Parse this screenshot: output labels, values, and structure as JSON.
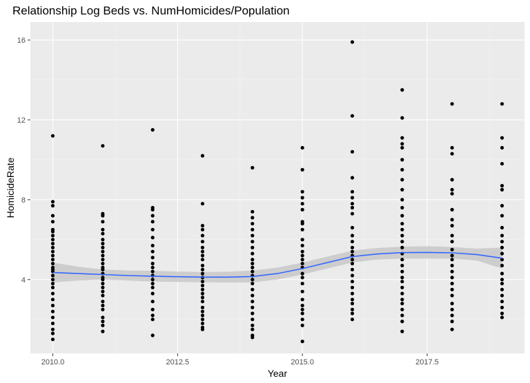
{
  "chart_data": {
    "type": "scatter",
    "title": "Relationship Log Beds vs. NumHomicides/Population",
    "xlabel": "Year",
    "ylabel": "HomicideRate",
    "xlim": [
      2009.55,
      2019.45
    ],
    "ylim": [
      0.3,
      16.9
    ],
    "x_ticks": [
      2010.0,
      2012.5,
      2015.0,
      2017.5
    ],
    "x_tick_labels": [
      "2010.0",
      "2012.5",
      "2015.0",
      "2017.5"
    ],
    "y_ticks": [
      4,
      8,
      12,
      16
    ],
    "y_tick_labels": [
      "4",
      "8",
      "12",
      "16"
    ],
    "grid": true,
    "panel_background": "#ebebeb",
    "point_color": "#000000",
    "smooth_color": "#3366ff",
    "ribbon_color": "#c8c8c8",
    "points": [
      {
        "x": 2010,
        "y": [
          11.2,
          7.9,
          7.7,
          7.2,
          6.9,
          6.5,
          6.4,
          6.2,
          6.0,
          5.8,
          5.6,
          5.4,
          5.2,
          5.0,
          4.8,
          4.6,
          4.5,
          4.4,
          4.2,
          4.0,
          3.8,
          3.6,
          3.3,
          3.0,
          2.7,
          2.4,
          2.1,
          1.8,
          1.5,
          1.3,
          1.0
        ]
      },
      {
        "x": 2011,
        "y": [
          10.7,
          7.3,
          7.2,
          6.9,
          6.5,
          6.3,
          6.0,
          5.8,
          5.6,
          5.4,
          5.2,
          5.0,
          4.8,
          4.6,
          4.5,
          4.3,
          4.1,
          4.0,
          3.8,
          3.6,
          3.4,
          3.2,
          2.9,
          2.7,
          2.5,
          2.1,
          1.9,
          1.7,
          1.4
        ]
      },
      {
        "x": 2012,
        "y": [
          11.5,
          7.6,
          7.5,
          7.2,
          6.9,
          6.5,
          6.1,
          5.7,
          5.4,
          5.1,
          4.8,
          4.6,
          4.4,
          4.2,
          4.0,
          3.8,
          3.6,
          3.3,
          2.9,
          2.5,
          2.2,
          2.0,
          1.2
        ]
      },
      {
        "x": 2013,
        "y": [
          10.2,
          7.8,
          6.7,
          6.5,
          6.2,
          5.9,
          5.6,
          5.4,
          5.2,
          5.0,
          4.7,
          4.5,
          4.3,
          4.1,
          3.9,
          3.7,
          3.5,
          3.3,
          3.1,
          2.9,
          2.6,
          2.4,
          2.2,
          2.0,
          1.8,
          1.6,
          1.5
        ]
      },
      {
        "x": 2014,
        "y": [
          9.6,
          7.4,
          7.1,
          6.8,
          6.5,
          6.2,
          5.9,
          5.6,
          5.3,
          5.0,
          4.8,
          4.6,
          4.4,
          4.2,
          4.0,
          3.8,
          3.5,
          3.2,
          2.9,
          2.6,
          2.3,
          2.0,
          1.7,
          1.5,
          1.2,
          1.1
        ]
      },
      {
        "x": 2015,
        "y": [
          10.6,
          9.5,
          8.4,
          8.1,
          7.8,
          7.5,
          6.9,
          6.8,
          6.5,
          6.0,
          5.7,
          5.4,
          5.2,
          5.0,
          4.8,
          4.6,
          4.3,
          4.1,
          3.8,
          3.4,
          3.0,
          2.7,
          2.5,
          2.3,
          2.0,
          1.7,
          0.9
        ]
      },
      {
        "x": 2016,
        "y": [
          15.9,
          12.2,
          10.4,
          9.1,
          8.4,
          8.1,
          7.8,
          7.6,
          7.3,
          6.6,
          6.2,
          5.9,
          5.6,
          5.4,
          5.2,
          5.0,
          4.8,
          4.5,
          4.2,
          3.9,
          3.6,
          3.3,
          3.0,
          2.8,
          2.5,
          2.3,
          2.0
        ]
      },
      {
        "x": 2017,
        "y": [
          13.5,
          12.1,
          11.1,
          10.8,
          10.6,
          10.0,
          9.5,
          9.0,
          8.5,
          8.0,
          7.6,
          7.2,
          6.8,
          6.5,
          6.2,
          5.9,
          5.6,
          5.3,
          5.0,
          4.7,
          4.4,
          4.1,
          3.9,
          3.6,
          3.3,
          3.0,
          2.8,
          2.5,
          2.2,
          1.9,
          1.4
        ]
      },
      {
        "x": 2018,
        "y": [
          12.8,
          10.6,
          10.3,
          9.0,
          8.5,
          8.3,
          7.5,
          7.0,
          6.7,
          6.2,
          5.9,
          5.5,
          5.2,
          5.0,
          4.7,
          4.4,
          4.1,
          3.8,
          3.5,
          3.2,
          2.8,
          2.5,
          2.2,
          1.9,
          1.5
        ]
      },
      {
        "x": 2019,
        "y": [
          12.8,
          11.1,
          10.6,
          9.8,
          8.7,
          8.5,
          7.7,
          7.2,
          6.6,
          6.2,
          5.9,
          5.6,
          5.3,
          5.0,
          4.7,
          4.3,
          4.0,
          3.8,
          3.5,
          3.2,
          2.9,
          2.6,
          2.3,
          2.1
        ]
      }
    ],
    "smooth": {
      "x": [
        2010,
        2010.5,
        2011,
        2011.5,
        2012,
        2012.5,
        2013,
        2013.5,
        2014,
        2014.5,
        2015,
        2015.5,
        2016,
        2016.5,
        2017,
        2017.5,
        2018,
        2018.5,
        2019
      ],
      "y": [
        4.35,
        4.3,
        4.25,
        4.2,
        4.17,
        4.14,
        4.12,
        4.12,
        4.15,
        4.3,
        4.55,
        4.85,
        5.15,
        5.28,
        5.35,
        5.36,
        5.34,
        5.25,
        5.07
      ],
      "lower": [
        3.85,
        3.95,
        4.0,
        3.95,
        3.9,
        3.88,
        3.86,
        3.85,
        3.85,
        4.0,
        4.25,
        4.55,
        4.85,
        5.0,
        5.05,
        5.05,
        5.05,
        4.95,
        4.55
      ],
      "upper": [
        4.85,
        4.65,
        4.5,
        4.45,
        4.44,
        4.4,
        4.38,
        4.39,
        4.45,
        4.6,
        4.85,
        5.15,
        5.45,
        5.58,
        5.65,
        5.67,
        5.63,
        5.55,
        5.6
      ]
    }
  }
}
